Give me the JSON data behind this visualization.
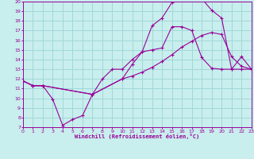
{
  "xlabel": "Windchill (Refroidissement éolien,°C)",
  "bg_color": "#c8eeed",
  "grid_color": "#a0d8d8",
  "line_color": "#990099",
  "xmin": 0,
  "xmax": 23,
  "ymin": 7,
  "ymax": 20,
  "line1_x": [
    0,
    1,
    2,
    3,
    4,
    5,
    6,
    7,
    8,
    9,
    10,
    11,
    12,
    13,
    14,
    15,
    16,
    17,
    18,
    19,
    20,
    21,
    22,
    23
  ],
  "line1_y": [
    11.8,
    11.3,
    11.3,
    9.9,
    7.2,
    7.8,
    8.2,
    10.4,
    12.0,
    13.0,
    13.0,
    14.0,
    14.8,
    15.0,
    15.2,
    17.4,
    17.4,
    17.0,
    14.2,
    13.1,
    13.0,
    13.0,
    13.0,
    13.0
  ],
  "line2_x": [
    0,
    1,
    2,
    7,
    10,
    11,
    12,
    13,
    14,
    15,
    16,
    17,
    18,
    19,
    20,
    21,
    22,
    23
  ],
  "line2_y": [
    11.8,
    11.3,
    11.3,
    10.4,
    12.0,
    13.5,
    14.8,
    17.5,
    18.3,
    19.9,
    20.2,
    20.2,
    20.3,
    19.1,
    18.3,
    13.0,
    14.3,
    13.0
  ],
  "line3_x": [
    0,
    1,
    2,
    7,
    10,
    11,
    12,
    13,
    14,
    15,
    16,
    17,
    18,
    19,
    20,
    21,
    22,
    23
  ],
  "line3_y": [
    11.8,
    11.3,
    11.3,
    10.4,
    12.0,
    12.3,
    12.7,
    13.2,
    13.8,
    14.5,
    15.3,
    15.9,
    16.5,
    16.8,
    16.6,
    14.3,
    13.3,
    13.0
  ]
}
